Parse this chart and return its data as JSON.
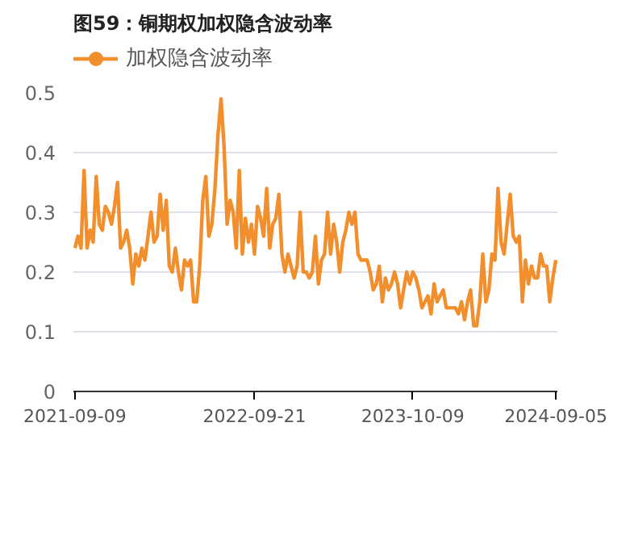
{
  "chart_data": {
    "type": "line",
    "title": "图59：铜期权加权隐含波动率",
    "categories": [
      "2021-09-09",
      null,
      null,
      null,
      null,
      null,
      null,
      null,
      null,
      null,
      null,
      null,
      null,
      null,
      null,
      null,
      null,
      null,
      null,
      null,
      null,
      null,
      null,
      null,
      null,
      null,
      null,
      null,
      null,
      null,
      null,
      null,
      null,
      null,
      null,
      null,
      null,
      null,
      null,
      null,
      null,
      null,
      null,
      null,
      null,
      null,
      null,
      null,
      null,
      null,
      null,
      null,
      null,
      null,
      null,
      null,
      null,
      null,
      null,
      "2022-09-21",
      null,
      null,
      null,
      null,
      null,
      null,
      null,
      null,
      null,
      null,
      null,
      null,
      null,
      null,
      null,
      null,
      null,
      null,
      null,
      null,
      null,
      null,
      null,
      null,
      null,
      null,
      null,
      null,
      null,
      null,
      null,
      null,
      null,
      null,
      null,
      null,
      null,
      null,
      null,
      null,
      null,
      null,
      null,
      null,
      null,
      null,
      null,
      null,
      null,
      null,
      null,
      "2023-10-09",
      null,
      null,
      null,
      null,
      null,
      null,
      null,
      null,
      null,
      null,
      null,
      null,
      null,
      null,
      null,
      null,
      null,
      null,
      null,
      null,
      null,
      null,
      null,
      null,
      null,
      null,
      null,
      null,
      null,
      null,
      null,
      null,
      null,
      null,
      null,
      null,
      null,
      null,
      null,
      null,
      null,
      null,
      null,
      null,
      null,
      null,
      "2024-09-05"
    ],
    "series": [
      {
        "name": "加权隐含波动率",
        "color": "#f28e2b",
        "values": [
          0.24,
          0.26,
          0.24,
          0.37,
          0.24,
          0.27,
          0.25,
          0.36,
          0.28,
          0.27,
          0.31,
          0.3,
          0.28,
          0.31,
          0.35,
          0.24,
          0.25,
          0.27,
          0.24,
          0.18,
          0.23,
          0.21,
          0.24,
          0.22,
          0.26,
          0.3,
          0.25,
          0.26,
          0.33,
          0.27,
          0.32,
          0.21,
          0.2,
          0.24,
          0.2,
          0.17,
          0.22,
          0.21,
          0.22,
          0.15,
          0.15,
          0.21,
          0.32,
          0.36,
          0.26,
          0.28,
          0.34,
          0.43,
          0.49,
          0.41,
          0.28,
          0.32,
          0.3,
          0.24,
          0.37,
          0.23,
          0.29,
          0.25,
          0.28,
          0.23,
          0.31,
          0.29,
          0.26,
          0.34,
          0.24,
          0.28,
          0.29,
          0.33,
          0.23,
          0.2,
          0.23,
          0.21,
          0.19,
          0.21,
          0.3,
          0.2,
          0.2,
          0.19,
          0.2,
          0.26,
          0.18,
          0.22,
          0.23,
          0.3,
          0.23,
          0.28,
          0.25,
          0.2,
          0.25,
          0.27,
          0.3,
          0.28,
          0.3,
          0.23,
          0.22,
          0.22,
          0.22,
          0.2,
          0.17,
          0.18,
          0.21,
          0.15,
          0.19,
          0.17,
          0.18,
          0.2,
          0.18,
          0.14,
          0.17,
          0.2,
          0.18,
          0.2,
          0.19,
          0.17,
          0.14,
          0.15,
          0.16,
          0.13,
          0.18,
          0.15,
          0.16,
          0.17,
          0.14,
          0.14,
          0.14,
          0.14,
          0.13,
          0.15,
          0.12,
          0.15,
          0.17,
          0.11,
          0.11,
          0.15,
          0.23,
          0.15,
          0.17,
          0.23,
          0.22,
          0.34,
          0.25,
          0.23,
          0.28,
          0.33,
          0.26,
          0.25,
          0.26,
          0.15,
          0.22,
          0.18,
          0.21,
          0.19,
          0.19,
          0.23,
          0.21,
          0.21,
          0.15,
          0.19,
          0.22
        ]
      }
    ],
    "ylim": [
      0,
      0.5
    ],
    "yticks": [
      0,
      0.1,
      0.2,
      0.3,
      0.4,
      0.5
    ],
    "grid": "y",
    "legend": "top left",
    "marker": "none",
    "line_style": "solid"
  }
}
